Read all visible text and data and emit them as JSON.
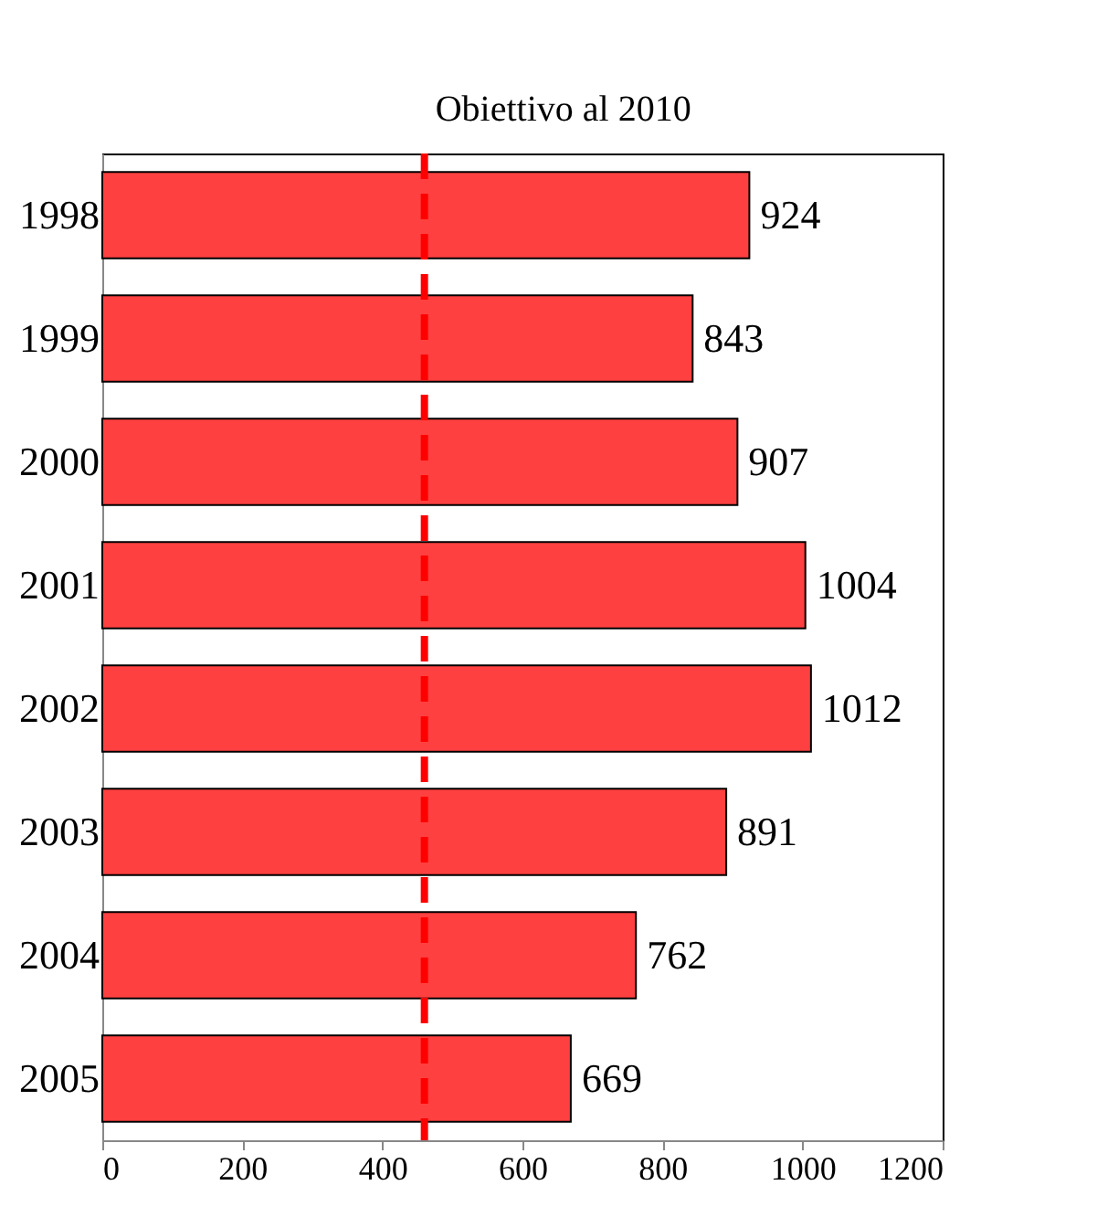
{
  "chart_data": {
    "type": "bar",
    "orientation": "horizontal",
    "categories": [
      "1998",
      "1999",
      "2000",
      "2001",
      "2002",
      "2003",
      "2004",
      "2005"
    ],
    "values": [
      924,
      843,
      907,
      1004,
      1012,
      891,
      762,
      669
    ],
    "color": "#ff4040",
    "data_labels": true,
    "xlim": [
      0,
      1200
    ],
    "xticks": [
      0,
      200,
      400,
      600,
      800,
      1000,
      1200
    ],
    "ref_lines": [
      {
        "axis": "x",
        "value": 460,
        "label": "Obiettivo al 2010",
        "color": "#ff0000",
        "line_style": "dashed"
      }
    ],
    "grid": false
  }
}
